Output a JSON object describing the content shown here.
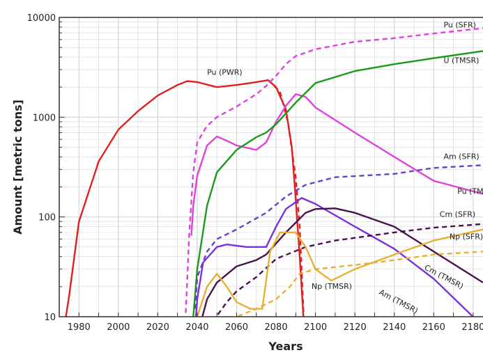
{
  "chart_data": {
    "type": "line",
    "xlabel": "Years",
    "ylabel": "Amount [metric tons]",
    "xlim": [
      1970,
      2185
    ],
    "ylim": [
      10,
      10000
    ],
    "yscale": "log",
    "grid": true,
    "xticks": [
      "1980",
      "2000",
      "2020",
      "2040",
      "2060",
      "2080",
      "2100",
      "2120",
      "2140",
      "2160",
      "2180"
    ],
    "yticks": [
      "10",
      "100",
      "1000",
      "10000"
    ],
    "series": [
      {
        "name": "Pu (PWR)",
        "color": "#e02020",
        "dash": false,
        "label_at": [
          2045,
          2650
        ],
        "points": [
          [
            1973,
            9
          ],
          [
            1975,
            16
          ],
          [
            1980,
            90
          ],
          [
            1990,
            360
          ],
          [
            2000,
            750
          ],
          [
            2010,
            1150
          ],
          [
            2020,
            1650
          ],
          [
            2030,
            2100
          ],
          [
            2035,
            2300
          ],
          [
            2040,
            2250
          ],
          [
            2050,
            2000
          ],
          [
            2060,
            2100
          ],
          [
            2070,
            2250
          ],
          [
            2076,
            2350
          ],
          [
            2080,
            2000
          ],
          [
            2085,
            1200
          ],
          [
            2088,
            500
          ],
          [
            2090,
            150
          ],
          [
            2092,
            40
          ],
          [
            2094,
            9
          ]
        ]
      },
      {
        "name": "",
        "color": "#e02020",
        "dash": true,
        "points": [
          [
            2076,
            2350
          ],
          [
            2082,
            1800
          ],
          [
            2086,
            900
          ],
          [
            2090,
            250
          ],
          [
            2092,
            80
          ],
          [
            2094,
            10
          ]
        ]
      },
      {
        "name": "Pu (SFR)",
        "color": "#e040e0",
        "dash": true,
        "label_at": [
          2165,
          7900
        ],
        "points": [
          [
            2034,
            9
          ],
          [
            2036,
            70
          ],
          [
            2038,
            280
          ],
          [
            2040,
            560
          ],
          [
            2045,
            820
          ],
          [
            2050,
            1000
          ],
          [
            2060,
            1280
          ],
          [
            2070,
            1700
          ],
          [
            2075,
            2050
          ],
          [
            2080,
            2600
          ],
          [
            2085,
            3400
          ],
          [
            2090,
            4100
          ],
          [
            2100,
            4800
          ],
          [
            2120,
            5700
          ],
          [
            2140,
            6200
          ],
          [
            2160,
            6900
          ],
          [
            2185,
            7800
          ]
        ]
      },
      {
        "name": "Pu (TMSR)",
        "color": "#e040e0",
        "dash": false,
        "label_at": [
          2172,
          170
        ],
        "points": [
          [
            2037,
            65
          ],
          [
            2038,
            130
          ],
          [
            2040,
            260
          ],
          [
            2045,
            520
          ],
          [
            2050,
            640
          ],
          [
            2055,
            580
          ],
          [
            2060,
            520
          ],
          [
            2070,
            470
          ],
          [
            2075,
            560
          ],
          [
            2080,
            900
          ],
          [
            2085,
            1300
          ],
          [
            2090,
            1700
          ],
          [
            2095,
            1600
          ],
          [
            2100,
            1250
          ],
          [
            2120,
            700
          ],
          [
            2140,
            400
          ],
          [
            2160,
            230
          ],
          [
            2185,
            170
          ]
        ]
      },
      {
        "name": "U (TMSR)",
        "color": "#1a9a1a",
        "dash": false,
        "label_at": [
          2165,
          3500
        ],
        "points": [
          [
            2038,
            10
          ],
          [
            2040,
            30
          ],
          [
            2045,
            130
          ],
          [
            2050,
            280
          ],
          [
            2060,
            470
          ],
          [
            2070,
            630
          ],
          [
            2075,
            700
          ],
          [
            2080,
            850
          ],
          [
            2090,
            1400
          ],
          [
            2100,
            2200
          ],
          [
            2120,
            2900
          ],
          [
            2140,
            3400
          ],
          [
            2160,
            3900
          ],
          [
            2185,
            4600
          ]
        ]
      },
      {
        "name": "Am (SFR)",
        "color": "#6a40c8",
        "dash": true,
        "label_at": [
          2165,
          380
        ],
        "points": [
          [
            2039,
            12
          ],
          [
            2040,
            25
          ],
          [
            2045,
            45
          ],
          [
            2050,
            60
          ],
          [
            2060,
            75
          ],
          [
            2075,
            110
          ],
          [
            2085,
            160
          ],
          [
            2095,
            210
          ],
          [
            2110,
            250
          ],
          [
            2140,
            270
          ],
          [
            2160,
            310
          ],
          [
            2185,
            330
          ]
        ]
      },
      {
        "name": "Am (TMSR)",
        "color": "#7a30e0",
        "dash": false,
        "label_at": [
          2132,
          17
        ],
        "points": [
          [
            2039,
            8
          ],
          [
            2040,
            15
          ],
          [
            2043,
            35
          ],
          [
            2050,
            50
          ],
          [
            2055,
            53
          ],
          [
            2065,
            50
          ],
          [
            2075,
            50
          ],
          [
            2080,
            80
          ],
          [
            2085,
            120
          ],
          [
            2093,
            155
          ],
          [
            2100,
            135
          ],
          [
            2120,
            80
          ],
          [
            2140,
            48
          ],
          [
            2160,
            24
          ],
          [
            2185,
            8
          ]
        ]
      },
      {
        "name": "Cm (SFR)",
        "color": "#4a1050",
        "dash": true,
        "label_at": [
          2163,
          100
        ],
        "points": [
          [
            2048,
            9
          ],
          [
            2055,
            14
          ],
          [
            2060,
            18
          ],
          [
            2070,
            25
          ],
          [
            2080,
            38
          ],
          [
            2095,
            50
          ],
          [
            2110,
            58
          ],
          [
            2140,
            70
          ],
          [
            2160,
            78
          ],
          [
            2185,
            85
          ]
        ]
      },
      {
        "name": "Cm (TMSR)",
        "color": "#4a1050",
        "dash": false,
        "label_at": [
          2155,
          30
        ],
        "points": [
          [
            2042,
            9
          ],
          [
            2045,
            15
          ],
          [
            2050,
            22
          ],
          [
            2060,
            32
          ],
          [
            2070,
            37
          ],
          [
            2075,
            42
          ],
          [
            2085,
            70
          ],
          [
            2095,
            110
          ],
          [
            2100,
            120
          ],
          [
            2110,
            122
          ],
          [
            2120,
            110
          ],
          [
            2140,
            80
          ],
          [
            2160,
            45
          ],
          [
            2185,
            22
          ]
        ]
      },
      {
        "name": "Np (SFR)",
        "color": "#e8b030",
        "dash": true,
        "label_at": [
          2168,
          60
        ],
        "points": [
          [
            2054,
            8
          ],
          [
            2060,
            10
          ],
          [
            2070,
            12
          ],
          [
            2080,
            15
          ],
          [
            2087,
            20
          ],
          [
            2092,
            27
          ],
          [
            2100,
            30
          ],
          [
            2120,
            33
          ],
          [
            2140,
            37
          ],
          [
            2160,
            42
          ],
          [
            2185,
            45
          ]
        ]
      },
      {
        "name": "Np (TMSR)",
        "color": "#e8b030",
        "dash": false,
        "label_at": [
          2098,
          19
        ],
        "points": [
          [
            2040,
            10
          ],
          [
            2045,
            20
          ],
          [
            2050,
            27
          ],
          [
            2055,
            20
          ],
          [
            2060,
            14
          ],
          [
            2067,
            12
          ],
          [
            2073,
            12
          ],
          [
            2077,
            45
          ],
          [
            2082,
            70
          ],
          [
            2090,
            70
          ],
          [
            2095,
            50
          ],
          [
            2100,
            30
          ],
          [
            2108,
            23
          ],
          [
            2120,
            30
          ],
          [
            2140,
            42
          ],
          [
            2160,
            58
          ],
          [
            2185,
            75
          ]
        ]
      }
    ]
  }
}
